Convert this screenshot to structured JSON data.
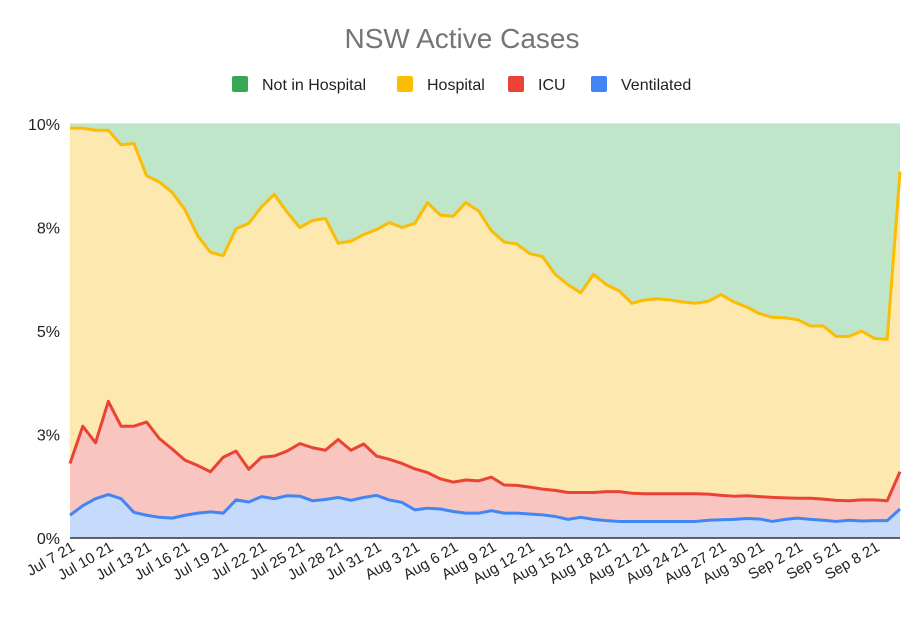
{
  "chart_data": {
    "type": "area",
    "stacked": "percent",
    "title": "NSW Active Cases",
    "legend_position": "top",
    "grid": true,
    "ylim": [
      0,
      10
    ],
    "y_ticks": [
      {
        "value": 0,
        "label": "0%"
      },
      {
        "value": 2.5,
        "label": "3%"
      },
      {
        "value": 5,
        "label": "5%"
      },
      {
        "value": 7.5,
        "label": "8%"
      },
      {
        "value": 10,
        "label": "10%"
      }
    ],
    "x_tick_labels": [
      "Jul 7 21",
      "Jul 10 21",
      "Jul 13 21",
      "Jul 16 21",
      "Jul 19 21",
      "Jul 22 21",
      "Jul 25 21",
      "Jul 28 21",
      "Jul 31 21",
      "Aug 3 21",
      "Aug 6 21",
      "Aug 9 21",
      "Aug 12 21",
      "Aug 15 21",
      "Aug 18 21",
      "Aug 21 21",
      "Aug 24 21",
      "Aug 27 21",
      "Aug 30 21",
      "Sep 2 21",
      "Sep 5 21",
      "Sep 8 21"
    ],
    "x": [
      "2021-07-07",
      "2021-07-08",
      "2021-07-09",
      "2021-07-10",
      "2021-07-11",
      "2021-07-12",
      "2021-07-13",
      "2021-07-14",
      "2021-07-15",
      "2021-07-16",
      "2021-07-17",
      "2021-07-18",
      "2021-07-19",
      "2021-07-20",
      "2021-07-21",
      "2021-07-22",
      "2021-07-23",
      "2021-07-24",
      "2021-07-25",
      "2021-07-26",
      "2021-07-27",
      "2021-07-28",
      "2021-07-29",
      "2021-07-30",
      "2021-07-31",
      "2021-08-01",
      "2021-08-02",
      "2021-08-03",
      "2021-08-04",
      "2021-08-05",
      "2021-08-06",
      "2021-08-07",
      "2021-08-08",
      "2021-08-09",
      "2021-08-10",
      "2021-08-11",
      "2021-08-12",
      "2021-08-13",
      "2021-08-14",
      "2021-08-15",
      "2021-08-16",
      "2021-08-17",
      "2021-08-18",
      "2021-08-19",
      "2021-08-20",
      "2021-08-21",
      "2021-08-22",
      "2021-08-23",
      "2021-08-24",
      "2021-08-25",
      "2021-08-26",
      "2021-08-27",
      "2021-08-28",
      "2021-08-29",
      "2021-08-30",
      "2021-08-31",
      "2021-09-01",
      "2021-09-02",
      "2021-09-03",
      "2021-09-04",
      "2021-09-05",
      "2021-09-06",
      "2021-09-07",
      "2021-09-08",
      "2021-09-09",
      "2021-09-10"
    ],
    "series": [
      {
        "name": "Ventilated",
        "color": "#4285f4",
        "fill": "#c6dafc",
        "values": [
          0.55,
          0.78,
          0.95,
          1.05,
          0.95,
          0.62,
          0.55,
          0.5,
          0.48,
          0.55,
          0.6,
          0.63,
          0.6,
          0.92,
          0.87,
          1.0,
          0.95,
          1.02,
          1.01,
          0.9,
          0.93,
          0.98,
          0.91,
          0.98,
          1.03,
          0.92,
          0.86,
          0.68,
          0.72,
          0.7,
          0.64,
          0.6,
          0.6,
          0.66,
          0.6,
          0.6,
          0.58,
          0.56,
          0.52,
          0.45,
          0.5,
          0.45,
          0.42,
          0.4,
          0.4,
          0.4,
          0.4,
          0.4,
          0.4,
          0.4,
          0.43,
          0.44,
          0.45,
          0.47,
          0.46,
          0.4,
          0.45,
          0.48,
          0.45,
          0.43,
          0.4,
          0.43,
          0.41,
          0.42,
          0.42,
          0.7
        ]
      },
      {
        "name": "ICU",
        "color": "#ea4335",
        "fill": "#f8c5c1",
        "values": [
          1.8,
          2.7,
          2.3,
          3.3,
          2.7,
          2.7,
          2.8,
          2.4,
          2.15,
          1.88,
          1.75,
          1.6,
          1.95,
          2.1,
          1.66,
          1.95,
          1.98,
          2.1,
          2.28,
          2.18,
          2.12,
          2.38,
          2.12,
          2.27,
          1.98,
          1.9,
          1.8,
          1.67,
          1.58,
          1.43,
          1.35,
          1.4,
          1.38,
          1.47,
          1.28,
          1.27,
          1.23,
          1.18,
          1.15,
          1.1,
          1.1,
          1.1,
          1.12,
          1.12,
          1.08,
          1.07,
          1.07,
          1.07,
          1.07,
          1.07,
          1.06,
          1.03,
          1.01,
          1.02,
          1.0,
          0.98,
          0.97,
          0.96,
          0.96,
          0.94,
          0.91,
          0.9,
          0.92,
          0.92,
          0.9,
          1.6
        ]
      },
      {
        "name": "Hospital",
        "color": "#fbbc04",
        "fill": "#fde8af",
        "values": [
          9.9,
          9.9,
          9.85,
          9.85,
          9.5,
          9.53,
          8.75,
          8.6,
          8.35,
          7.93,
          7.3,
          6.9,
          6.82,
          7.47,
          7.6,
          8.0,
          8.3,
          7.87,
          7.5,
          7.67,
          7.72,
          7.12,
          7.17,
          7.33,
          7.45,
          7.62,
          7.5,
          7.6,
          8.1,
          7.8,
          7.77,
          8.1,
          7.9,
          7.42,
          7.15,
          7.1,
          6.87,
          6.8,
          6.37,
          6.12,
          5.92,
          6.37,
          6.12,
          5.97,
          5.67,
          5.75,
          5.78,
          5.75,
          5.7,
          5.67,
          5.72,
          5.88,
          5.7,
          5.58,
          5.42,
          5.33,
          5.32,
          5.27,
          5.12,
          5.12,
          4.87,
          4.87,
          5.0,
          4.82,
          4.8,
          8.85
        ]
      },
      {
        "name": "Not in Hospital",
        "color": "#34a853",
        "fill": "#c0e6ca",
        "values": [
          10,
          10,
          10,
          10,
          10,
          10,
          10,
          10,
          10,
          10,
          10,
          10,
          10,
          10,
          10,
          10,
          10,
          10,
          10,
          10,
          10,
          10,
          10,
          10,
          10,
          10,
          10,
          10,
          10,
          10,
          10,
          10,
          10,
          10,
          10,
          10,
          10,
          10,
          10,
          10,
          10,
          10,
          10,
          10,
          10,
          10,
          10,
          10,
          10,
          10,
          10,
          10,
          10,
          10,
          10,
          10,
          10,
          10,
          10,
          10,
          10,
          10,
          10,
          10,
          10,
          10
        ]
      }
    ],
    "legend_order": [
      "Not in Hospital",
      "Hospital",
      "ICU",
      "Ventilated"
    ],
    "grid_color": "#cccccc",
    "axis_color": "#333333"
  }
}
